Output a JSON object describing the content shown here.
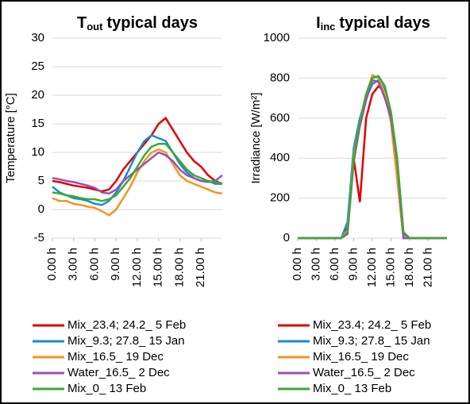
{
  "chart_data": [
    {
      "type": "line",
      "title_parts": [
        "T",
        "out",
        "typical days"
      ],
      "y_label": "Temperature [°C]",
      "x": [
        0,
        1,
        2,
        3,
        4,
        5,
        6,
        7,
        8,
        9,
        10,
        11,
        12,
        13,
        14,
        15,
        16,
        17,
        18,
        19,
        20,
        21,
        22,
        23,
        24
      ],
      "xlim": [
        0,
        24
      ],
      "xticks": [
        {
          "value": 0,
          "label": "0.00 h"
        },
        {
          "value": 3,
          "label": "3.00 h"
        },
        {
          "value": 6,
          "label": "6.00 h"
        },
        {
          "value": 9,
          "label": "9.00 h"
        },
        {
          "value": 12,
          "label": "12.00 h"
        },
        {
          "value": 15,
          "label": "15.00 h"
        },
        {
          "value": 18,
          "label": "18.00 h"
        },
        {
          "value": 21,
          "label": "21.00 h"
        }
      ],
      "ylim": [
        -5,
        30
      ],
      "yticks": [
        -5,
        0,
        5,
        10,
        15,
        20,
        25,
        30
      ],
      "grid": true,
      "series": [
        {
          "name": "Mix_23.4; 24.2_ 5 Feb",
          "color": "#e00000",
          "values": [
            5,
            4.8,
            4.5,
            4.2,
            4,
            3.8,
            3.5,
            3.2,
            3.5,
            5,
            7,
            8.5,
            10,
            11.5,
            13,
            15,
            16,
            14,
            12,
            10,
            8.5,
            7.5,
            6,
            5,
            4.5
          ]
        },
        {
          "name": "Mix_9.3; 27.8_ 15 Jan",
          "color": "#1a8ad4",
          "values": [
            4,
            3,
            2.5,
            2,
            1.8,
            1.5,
            1,
            0.8,
            1.5,
            3,
            5,
            7.5,
            10,
            12,
            13,
            12.5,
            12,
            10,
            8,
            6.5,
            5.5,
            5,
            5,
            4.5,
            4.5
          ]
        },
        {
          "name": "Mix_16.5_ 19 Dec",
          "color": "#f7941d",
          "values": [
            2,
            1.5,
            1.5,
            1,
            0.8,
            0.5,
            0.3,
            -0.3,
            -1,
            0,
            2,
            4,
            6.5,
            8.5,
            10,
            10.5,
            10,
            8,
            6,
            5,
            4.5,
            4,
            3.5,
            3,
            2.8
          ]
        },
        {
          "name": "Water_16.5_ 2 Dec",
          "color": "#9b4fb5",
          "values": [
            5.5,
            5.3,
            5,
            4.8,
            4.5,
            4.2,
            3.8,
            3,
            2.8,
            3.5,
            5,
            6,
            7,
            8,
            9,
            10,
            9.5,
            8.5,
            7,
            6,
            5.5,
            5,
            4.8,
            5,
            6
          ]
        },
        {
          "name": "Mix_0_ 13 Feb",
          "color": "#3aaa35",
          "values": [
            3,
            2.8,
            2.5,
            2.3,
            2,
            1.8,
            1.8,
            1.5,
            1.8,
            2.5,
            4,
            5.5,
            7.5,
            9.5,
            11,
            11.5,
            11.5,
            10,
            8.5,
            7,
            6,
            5.5,
            5,
            4.8,
            4.5
          ]
        }
      ]
    },
    {
      "type": "line",
      "title_parts": [
        "I",
        "inc",
        "typical days"
      ],
      "y_label": "Irradiance [W/m²]",
      "x": [
        0,
        1,
        2,
        3,
        4,
        5,
        6,
        7,
        8,
        9,
        10,
        11,
        12,
        13,
        14,
        15,
        16,
        17,
        18,
        19,
        20,
        21,
        22,
        23,
        24
      ],
      "xlim": [
        0,
        24
      ],
      "xticks": [
        {
          "value": 0,
          "label": "0.00 h"
        },
        {
          "value": 3,
          "label": "3.00 h"
        },
        {
          "value": 6,
          "label": "6.00 h"
        },
        {
          "value": 9,
          "label": "9.00 h"
        },
        {
          "value": 12,
          "label": "12.00 h"
        },
        {
          "value": 15,
          "label": "15.00 h"
        },
        {
          "value": 18,
          "label": "18.00 h"
        },
        {
          "value": 21,
          "label": "21.00 h"
        }
      ],
      "ylim": [
        0,
        1000
      ],
      "yticks": [
        0,
        200,
        400,
        600,
        800,
        1000
      ],
      "grid": true,
      "series": [
        {
          "name": "Mix_23.4; 24.2_ 5 Feb",
          "color": "#e00000",
          "values": [
            0,
            0,
            0,
            0,
            0,
            0,
            0,
            0,
            50,
            400,
            180,
            600,
            720,
            760,
            730,
            580,
            300,
            0,
            0,
            0,
            0,
            0,
            0,
            0,
            0
          ]
        },
        {
          "name": "Mix_9.3; 27.8_ 15 Jan",
          "color": "#1a8ad4",
          "values": [
            0,
            0,
            0,
            0,
            0,
            0,
            0,
            0,
            80,
            450,
            600,
            700,
            770,
            790,
            740,
            620,
            350,
            20,
            0,
            0,
            0,
            0,
            0,
            0,
            0
          ]
        },
        {
          "name": "Mix_16.5_ 19 Dec",
          "color": "#f7941d",
          "values": [
            0,
            0,
            0,
            0,
            0,
            0,
            0,
            0,
            40,
            420,
            580,
            720,
            815,
            800,
            720,
            580,
            300,
            0,
            0,
            0,
            0,
            0,
            0,
            0,
            0
          ]
        },
        {
          "name": "Water_16.5_ 2 Dec",
          "color": "#9b4fb5",
          "values": [
            0,
            0,
            0,
            0,
            0,
            0,
            0,
            0,
            20,
            380,
            560,
            690,
            790,
            780,
            700,
            600,
            380,
            0,
            0,
            0,
            0,
            0,
            0,
            0,
            0
          ]
        },
        {
          "name": "Mix_0_ 13 Feb",
          "color": "#3aaa35",
          "values": [
            0,
            0,
            0,
            0,
            0,
            0,
            0,
            0,
            30,
            400,
            590,
            720,
            800,
            810,
            760,
            630,
            400,
            30,
            0,
            0,
            0,
            0,
            0,
            0,
            0
          ]
        }
      ]
    }
  ]
}
